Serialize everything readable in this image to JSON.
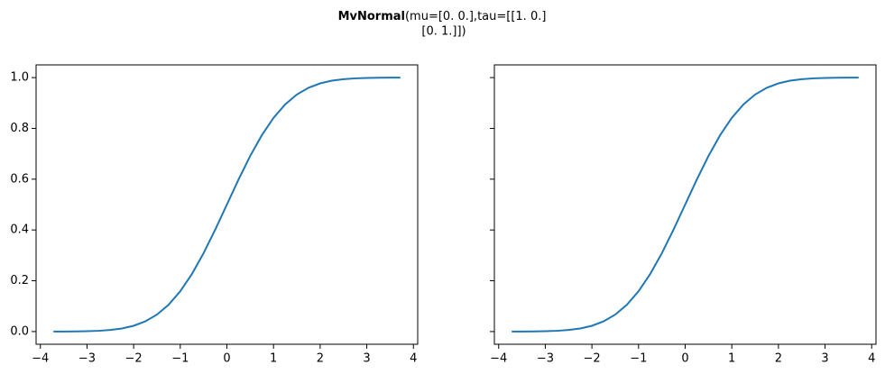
{
  "suptitle": {
    "bold": "MvNormal",
    "lines": [
      "(mu=[0. 0.],tau=[[1. 0.]",
      "[0. 1.]])"
    ]
  },
  "chart_data": [
    {
      "type": "line",
      "x": [
        -3.72,
        -3.5,
        -3.25,
        -3,
        -2.75,
        -2.5,
        -2.25,
        -2,
        -1.75,
        -1.5,
        -1.25,
        -1,
        -0.75,
        -0.5,
        -0.25,
        0,
        0.25,
        0.5,
        0.75,
        1,
        1.25,
        1.5,
        1.75,
        2,
        2.25,
        2.5,
        2.75,
        3,
        3.25,
        3.5,
        3.72
      ],
      "series": [
        {
          "color": "#1f77b4",
          "values": [
            0.0001,
            0.0002,
            0.0006,
            0.0013,
            0.003,
            0.0062,
            0.0122,
            0.0228,
            0.0401,
            0.0668,
            0.1056,
            0.1587,
            0.2266,
            0.3085,
            0.4013,
            0.5,
            0.5987,
            0.6915,
            0.7734,
            0.8413,
            0.8944,
            0.9332,
            0.9599,
            0.9772,
            0.9878,
            0.9938,
            0.997,
            0.9987,
            0.9994,
            0.9998,
            0.9999
          ]
        }
      ],
      "xlim": [
        -4.092,
        4.092
      ],
      "xticks": [
        {
          "value": -4,
          "label": "−4"
        },
        {
          "value": -3,
          "label": "−3"
        },
        {
          "value": -2,
          "label": "−2"
        },
        {
          "value": -1,
          "label": "−1"
        },
        0,
        1,
        2,
        3,
        4
      ],
      "ylim": [
        -0.05,
        1.05
      ],
      "yticks": [
        {
          "value": 0,
          "label": "0.0"
        },
        {
          "value": 0.2,
          "label": "0.2"
        },
        {
          "value": 0.4,
          "label": "0.4"
        },
        {
          "value": 0.6,
          "label": "0.6"
        },
        {
          "value": 0.8,
          "label": "0.8"
        },
        {
          "value": 1,
          "label": "1.0"
        }
      ]
    },
    {
      "type": "line",
      "x": [
        -3.72,
        -3.5,
        -3.25,
        -3,
        -2.75,
        -2.5,
        -2.25,
        -2,
        -1.75,
        -1.5,
        -1.25,
        -1,
        -0.75,
        -0.5,
        -0.25,
        0,
        0.25,
        0.5,
        0.75,
        1,
        1.25,
        1.5,
        1.75,
        2,
        2.25,
        2.5,
        2.75,
        3,
        3.25,
        3.5,
        3.72
      ],
      "series": [
        {
          "color": "#1f77b4",
          "values": [
            0.0001,
            0.0002,
            0.0006,
            0.0013,
            0.003,
            0.0062,
            0.0122,
            0.0228,
            0.0401,
            0.0668,
            0.1056,
            0.1587,
            0.2266,
            0.3085,
            0.4013,
            0.5,
            0.5987,
            0.6915,
            0.7734,
            0.8413,
            0.8944,
            0.9332,
            0.9599,
            0.9772,
            0.9878,
            0.9938,
            0.997,
            0.9987,
            0.9994,
            0.9998,
            0.9999
          ]
        }
      ],
      "xlim": [
        -4.092,
        4.092
      ],
      "xticks": [
        {
          "value": -4,
          "label": "−4"
        },
        {
          "value": -3,
          "label": "−3"
        },
        {
          "value": -2,
          "label": "−2"
        },
        {
          "value": -1,
          "label": "−1"
        },
        0,
        1,
        2,
        3,
        4
      ],
      "ylim": [
        -0.05,
        1.05
      ],
      "yticks": [
        0,
        0.2,
        0.4,
        0.6,
        0.8,
        1
      ]
    }
  ]
}
